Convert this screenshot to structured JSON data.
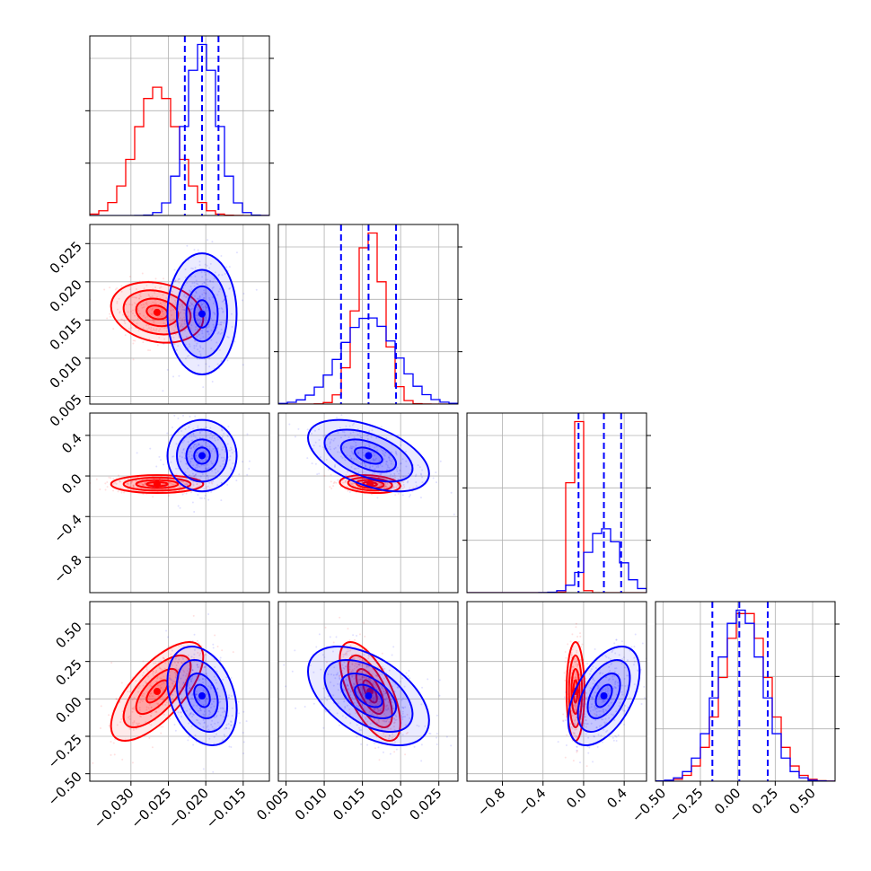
{
  "chart_data": {
    "type": "corner",
    "dimensions": 4,
    "grid": true,
    "series": [
      {
        "color": "#ff0000",
        "means": [
          -0.0265,
          0.016,
          -0.08,
          0.05
        ],
        "stds": [
          0.0028,
          0.0018,
          0.04,
          0.15
        ],
        "correlations": {
          "1-0": -0.2,
          "2-0": 0.0,
          "3-0": 0.7,
          "2-1": -0.2,
          "3-1": -0.65,
          "3-2": 0.0
        }
      },
      {
        "color": "#0000ff",
        "means": [
          -0.0205,
          0.0158,
          0.2,
          0.02
        ],
        "stds": [
          0.0021,
          0.0036,
          0.16,
          0.15
        ],
        "correlations": {
          "1-0": 0.0,
          "2-0": 0.0,
          "3-0": -0.3,
          "2-1": -0.5,
          "3-1": -0.5,
          "3-2": 0.5
        }
      }
    ],
    "quantile_lines": {
      "color": "#0000ff",
      "style": "dashed",
      "dim0": [
        -0.0228,
        -0.0205,
        -0.0183
      ],
      "dim1": [
        0.0122,
        0.0158,
        0.0194
      ],
      "dim2": [
        -0.05,
        0.2,
        0.37
      ],
      "dim3": [
        -0.17,
        0.01,
        0.2
      ]
    },
    "axes": [
      {
        "range": [
          -0.0355,
          -0.0115
        ],
        "ticks": [
          -0.03,
          -0.025,
          -0.02,
          -0.015
        ],
        "tick_labels": [
          "−0.030",
          "−0.025",
          "−0.020",
          "−0.015"
        ]
      },
      {
        "range": [
          0.004,
          0.0275
        ],
        "ticks": [
          0.005,
          0.01,
          0.015,
          0.02,
          0.025
        ],
        "tick_labels": [
          "0.005",
          "0.010",
          "0.015",
          "0.020",
          "0.025"
        ]
      },
      {
        "range": [
          -1.15,
          0.62
        ],
        "ticks": [
          -0.8,
          -0.4,
          0.0,
          0.4
        ],
        "tick_labels": [
          "−0.8",
          "−0.4",
          "0.0",
          "0.4"
        ]
      },
      {
        "range": [
          -0.55,
          0.65
        ],
        "ticks": [
          -0.5,
          -0.25,
          0.0,
          0.25,
          0.5
        ],
        "tick_labels": [
          "−0.50",
          "−0.25",
          "0.00",
          "0.25",
          "0.50"
        ]
      }
    ]
  }
}
